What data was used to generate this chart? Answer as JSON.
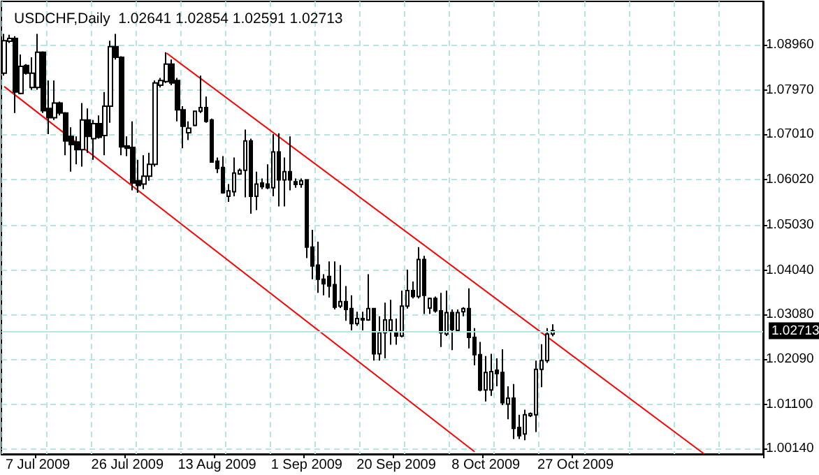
{
  "chart_data": {
    "type": "candlestick",
    "title": "USDCHF,Daily  1.02641 1.02854 1.02591 1.02713",
    "categories": [
      null,
      null,
      null,
      null,
      null,
      null,
      "7 Jul 2009",
      null,
      null,
      null,
      null,
      null,
      null,
      null,
      null,
      null,
      null,
      null,
      null,
      null,
      null,
      null,
      "26 Jul 2009",
      null,
      null,
      null,
      null,
      null,
      null,
      null,
      null,
      null,
      null,
      null,
      null,
      null,
      null,
      null,
      "13 Aug 2009",
      null,
      null,
      null,
      null,
      null,
      null,
      null,
      null,
      null,
      null,
      null,
      null,
      null,
      null,
      null,
      "1 Sep 2009",
      null,
      null,
      null,
      null,
      null,
      null,
      null,
      null,
      null,
      null,
      null,
      null,
      null,
      null,
      null,
      "20 Sep 2009",
      null,
      null,
      null,
      null,
      null,
      null,
      null,
      null,
      null,
      null,
      null,
      null,
      null,
      null,
      null,
      "8 Oct 2009",
      null,
      null,
      null,
      null,
      null,
      null,
      null,
      null,
      null,
      null,
      null,
      null,
      null,
      null,
      null,
      "27 Oct 2009",
      null,
      null,
      null,
      null,
      null,
      null,
      null,
      null,
      null,
      null,
      null,
      null,
      null,
      null,
      null,
      null,
      null,
      null,
      null,
      null,
      null,
      null,
      null,
      null,
      null,
      null,
      null,
      null,
      null,
      null,
      null,
      null,
      null
    ],
    "ohlc": [
      [
        1.0834,
        1.092,
        1.0829,
        1.0905
      ],
      [
        1.0904,
        1.0918,
        1.09,
        1.091
      ],
      [
        1.091,
        1.0915,
        1.0747,
        1.0793
      ],
      [
        1.079,
        1.0875,
        1.0788,
        1.0849
      ],
      [
        1.0851,
        1.0854,
        1.0831,
        1.0834
      ],
      [
        1.0803,
        1.0869,
        1.0798,
        1.0834
      ],
      [
        1.0803,
        1.092,
        1.0798,
        1.088
      ],
      [
        1.088,
        1.0882,
        1.0747,
        1.0752
      ],
      [
        1.0757,
        1.0818,
        1.0701,
        1.0737
      ],
      [
        1.0737,
        1.0818,
        1.0732,
        1.0769
      ],
      [
        1.0769,
        1.0772,
        1.0742,
        1.0747
      ],
      [
        1.0747,
        1.0749,
        1.0655,
        1.0686
      ],
      [
        1.0696,
        1.0716,
        1.0619,
        1.0678
      ],
      [
        1.0684,
        1.0696,
        1.0635,
        1.0667
      ],
      [
        1.0667,
        1.0769,
        1.063,
        1.0732
      ],
      [
        1.0732,
        1.0757,
        1.066,
        1.0696
      ],
      [
        1.0691,
        1.0732,
        1.0645,
        1.0724
      ],
      [
        1.0724,
        1.0742,
        1.0691,
        1.0694
      ],
      [
        1.0698,
        1.0793,
        1.0655,
        1.0762
      ],
      [
        1.0762,
        1.0905,
        1.0726,
        1.0892
      ],
      [
        1.0892,
        1.092,
        1.0864,
        1.0869
      ],
      [
        1.0869,
        1.0871,
        1.0655,
        1.0673
      ],
      [
        1.0675,
        1.0696,
        1.0653,
        1.067
      ],
      [
        1.0672,
        1.0729,
        1.0578,
        1.0594
      ],
      [
        1.0599,
        1.0645,
        1.0573,
        1.0589
      ],
      [
        1.0592,
        1.0655,
        1.0581,
        1.0609
      ],
      [
        1.0609,
        1.066,
        1.0599,
        1.0635
      ],
      [
        1.0635,
        1.0818,
        1.063,
        1.0813
      ],
      [
        1.0808,
        1.0824,
        1.0803,
        1.0818
      ],
      [
        1.0816,
        1.088,
        1.0813,
        1.0854
      ],
      [
        1.0854,
        1.0864,
        1.0808,
        1.0813
      ],
      [
        1.0818,
        1.0824,
        1.0729,
        1.0754
      ],
      [
        1.0754,
        1.0762,
        1.067,
        1.0718
      ],
      [
        1.0704,
        1.0729,
        1.0688,
        1.0714
      ],
      [
        1.072,
        1.0752,
        1.0718,
        1.0751
      ],
      [
        1.0751,
        1.0829,
        1.0747,
        1.0759
      ],
      [
        1.0759,
        1.0783,
        1.0726,
        1.0729
      ],
      [
        1.0732,
        1.0735,
        1.0639,
        1.064
      ],
      [
        1.0642,
        1.065,
        1.0616,
        1.0626
      ],
      [
        1.0628,
        1.0653,
        1.0571,
        1.0573
      ],
      [
        1.0565,
        1.0592,
        1.0553,
        1.0577
      ],
      [
        1.0575,
        1.065,
        1.0565,
        1.0616
      ],
      [
        1.0614,
        1.0626,
        1.0612,
        1.0622
      ],
      [
        1.0622,
        1.0711,
        1.0563,
        1.0686
      ],
      [
        1.0686,
        1.0691,
        1.0527,
        1.0565
      ],
      [
        1.0565,
        1.0619,
        1.0535,
        1.0592
      ],
      [
        1.0594,
        1.0604,
        1.0581,
        1.0586
      ],
      [
        1.0592,
        1.0635,
        1.0581,
        1.0584
      ],
      [
        1.0584,
        1.0701,
        1.0565,
        1.0662
      ],
      [
        1.0662,
        1.0703,
        1.0543,
        1.0601
      ],
      [
        1.0601,
        1.065,
        1.0543,
        1.0619
      ],
      [
        1.0619,
        1.0696,
        1.0578,
        1.0601
      ],
      [
        1.0597,
        1.0604,
        1.0584,
        1.0591
      ],
      [
        1.0591,
        1.0604,
        1.0584,
        1.0599
      ],
      [
        1.0601,
        1.0601,
        1.043,
        1.0454
      ],
      [
        1.0454,
        1.0492,
        1.0384,
        1.0413
      ],
      [
        1.0415,
        1.0466,
        1.0354,
        1.0384
      ],
      [
        1.0384,
        1.0395,
        1.0349,
        1.0374
      ],
      [
        1.039,
        1.0423,
        1.0344,
        1.0369
      ],
      [
        1.0372,
        1.0423,
        1.0318,
        1.0323
      ],
      [
        1.0325,
        1.0415,
        1.0321,
        1.0335
      ],
      [
        1.0335,
        1.0369,
        1.0293,
        1.0318
      ],
      [
        1.032,
        1.0349,
        1.0272,
        1.0287
      ],
      [
        1.0287,
        1.0313,
        1.0282,
        1.0298
      ],
      [
        1.0295,
        1.0313,
        1.0272,
        1.0298
      ],
      [
        1.0295,
        1.0395,
        1.0293,
        1.032
      ],
      [
        1.032,
        1.032,
        1.0206,
        1.0221
      ],
      [
        1.0221,
        1.0303,
        1.0206,
        1.0267
      ],
      [
        1.0267,
        1.0333,
        1.0211,
        1.0295
      ],
      [
        1.0272,
        1.0339,
        1.0241,
        1.0295
      ],
      [
        1.0269,
        1.0298,
        1.0241,
        1.026
      ],
      [
        1.026,
        1.0359,
        1.0257,
        1.0325
      ],
      [
        1.0325,
        1.0405,
        1.032,
        1.0359
      ],
      [
        1.0359,
        1.0379,
        1.0342,
        1.0346
      ],
      [
        1.0346,
        1.0454,
        1.0342,
        1.0427
      ],
      [
        1.0427,
        1.0435,
        1.0308,
        1.0349
      ],
      [
        1.0321,
        1.0344,
        1.0308,
        1.0342
      ],
      [
        1.0342,
        1.0346,
        1.0311,
        1.0315
      ],
      [
        1.0315,
        1.0354,
        1.0236,
        1.0267
      ],
      [
        1.0264,
        1.0359,
        1.026,
        1.0311
      ],
      [
        1.0311,
        1.0318,
        1.0229,
        1.0274
      ],
      [
        1.0272,
        1.0318,
        1.027,
        1.0311
      ],
      [
        1.0313,
        1.0323,
        1.0303,
        1.032
      ],
      [
        1.032,
        1.0364,
        1.0233,
        1.0257
      ],
      [
        1.0257,
        1.0277,
        1.0196,
        1.0219
      ],
      [
        1.0219,
        1.0247,
        1.0139,
        1.0142
      ],
      [
        1.0142,
        1.0216,
        1.0117,
        1.018
      ],
      [
        1.0142,
        1.0221,
        1.0129,
        1.0182
      ],
      [
        1.0185,
        1.0211,
        1.015,
        1.0178
      ],
      [
        1.018,
        1.0231,
        1.0109,
        1.0114
      ],
      [
        1.0111,
        1.015,
        1.0078,
        1.0124
      ],
      [
        1.0124,
        1.0155,
        1.0035,
        1.0058
      ],
      [
        1.006,
        1.0088,
        1.0035,
        1.0042
      ],
      [
        1.0046,
        1.0099,
        1.0032,
        1.0088
      ],
      [
        1.0086,
        1.0093,
        1.0083,
        1.009
      ],
      [
        1.0088,
        1.0206,
        1.005,
        1.0187
      ],
      [
        1.0187,
        1.0242,
        1.0148,
        1.0206
      ],
      [
        1.0206,
        1.0277,
        1.0201,
        1.0264
      ],
      [
        1.02641,
        1.02854,
        1.02591,
        1.02713
      ],
      null,
      null,
      null,
      null,
      null,
      null,
      null,
      null,
      null,
      null,
      null,
      null,
      null,
      null,
      null,
      null,
      null,
      null,
      null,
      null,
      null,
      null,
      null,
      null,
      null,
      null,
      null,
      null,
      null,
      null,
      null,
      null,
      null,
      null,
      null,
      null,
      null
    ],
    "series": [
      {
        "type": "line",
        "color": "#ff0000",
        "values": [
          null,
          null,
          null,
          null,
          null,
          null,
          null,
          null,
          null,
          null,
          null,
          null,
          null,
          null,
          null,
          null,
          null,
          null,
          null,
          null,
          null,
          null,
          null,
          null,
          null,
          null,
          null,
          null,
          null,
          1.0878,
          null,
          null,
          null,
          null,
          null,
          null,
          null,
          null,
          null,
          null,
          null,
          null,
          null,
          null,
          null,
          null,
          null,
          null,
          null,
          null,
          null,
          null,
          null,
          null,
          null,
          null,
          null,
          null,
          null,
          null,
          null,
          null,
          null,
          null,
          null,
          null,
          null,
          null,
          null,
          null,
          null,
          null,
          null,
          null,
          null,
          null,
          null,
          null,
          null,
          null,
          null,
          null,
          null,
          null,
          null,
          null,
          null,
          null,
          null,
          null,
          null,
          null,
          null,
          null,
          null,
          null,
          null,
          null,
          null,
          null,
          null,
          null,
          null,
          null,
          null,
          null,
          null,
          null,
          null,
          null,
          null,
          null,
          null,
          null,
          null,
          null,
          null,
          null,
          null,
          null,
          null,
          null,
          null,
          null,
          null,
          1.0002,
          null,
          null,
          null,
          null,
          null,
          null,
          null,
          null,
          null,
          null
        ]
      },
      {
        "type": "line",
        "color": "#ff0000",
        "values": [
          1.0805,
          null,
          null,
          null,
          null,
          null,
          null,
          null,
          null,
          null,
          null,
          null,
          null,
          null,
          null,
          null,
          null,
          null,
          null,
          null,
          null,
          null,
          null,
          null,
          null,
          null,
          null,
          null,
          null,
          null,
          null,
          null,
          null,
          null,
          null,
          null,
          null,
          null,
          null,
          null,
          null,
          null,
          null,
          null,
          null,
          null,
          null,
          null,
          null,
          null,
          null,
          null,
          null,
          null,
          null,
          null,
          null,
          null,
          null,
          null,
          null,
          null,
          null,
          null,
          null,
          null,
          null,
          null,
          null,
          null,
          null,
          null,
          null,
          null,
          null,
          null,
          null,
          null,
          null,
          null,
          null,
          null,
          null,
          null,
          1.0007,
          null,
          null,
          null,
          null,
          null,
          null,
          null,
          null,
          null,
          null,
          null,
          null,
          null,
          null,
          null,
          null,
          null,
          null,
          null,
          null,
          null,
          null,
          null,
          null,
          null,
          null,
          null,
          null,
          null,
          null,
          null,
          null,
          null,
          null,
          null,
          null,
          null,
          null,
          null,
          null,
          null,
          null,
          null,
          null,
          null,
          null,
          null,
          null,
          null,
          null,
          null
        ]
      }
    ],
    "ylim": [
      1.0002,
      1.0991
    ],
    "yticks": [
      {
        "value": 1.0014,
        "label": "1.00140"
      },
      {
        "value": 1.011,
        "label": "1.01100"
      },
      {
        "value": 1.0209,
        "label": "1.02090"
      },
      {
        "value": 1.0308,
        "label": "1.03080"
      },
      {
        "value": 1.0404,
        "label": "1.04040"
      },
      {
        "value": 1.0503,
        "label": "1.05030"
      },
      {
        "value": 1.0602,
        "label": "1.06020"
      },
      {
        "value": 1.0701,
        "label": "1.07010"
      },
      {
        "value": 1.0797,
        "label": "1.07970"
      },
      {
        "value": 1.0896,
        "label": "1.08960"
      }
    ],
    "ref_lines": [
      {
        "axis": "y",
        "value": 1.02713,
        "label": "1.02713",
        "color": "#b4e6e6",
        "line_style": "solid"
      }
    ],
    "grid": true
  }
}
